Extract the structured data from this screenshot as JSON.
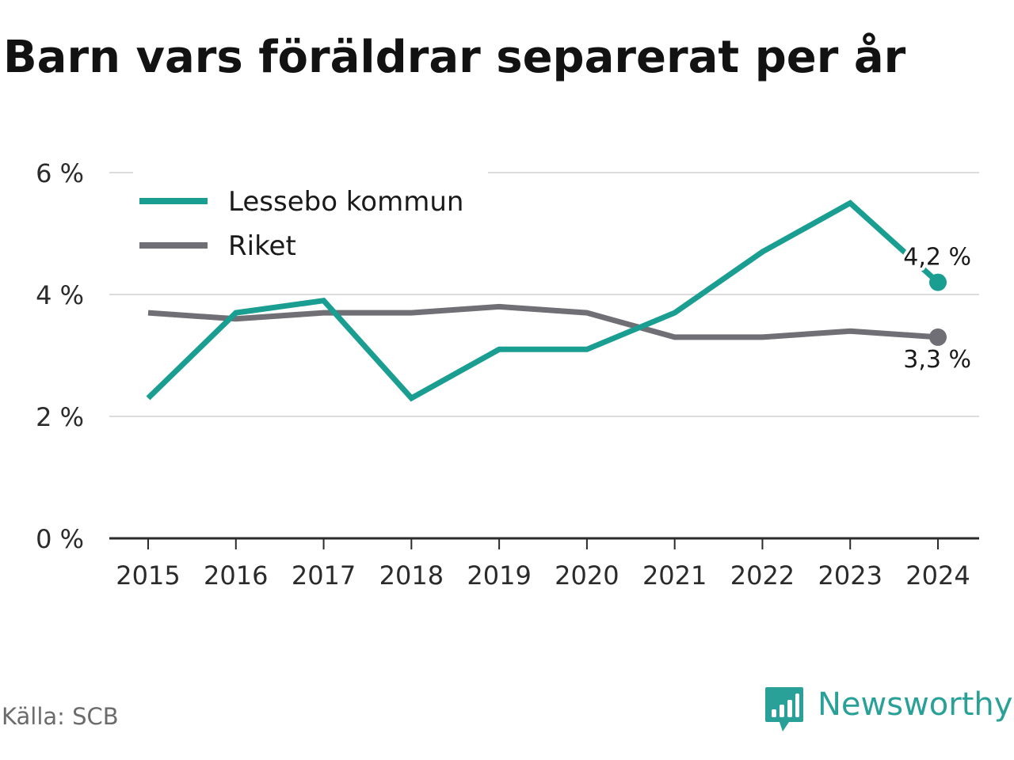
{
  "title": "Barn vars föräldrar separerat per år",
  "source": "Källa: SCB",
  "brand": {
    "name": "Newsworthy",
    "icon": "newsworthy-logo-icon",
    "color": "#2aa198"
  },
  "chart_data": {
    "type": "line",
    "title": "Barn vars föräldrar separerat per år",
    "xlabel": "",
    "ylabel": "",
    "categories": [
      "2015",
      "2016",
      "2017",
      "2018",
      "2019",
      "2020",
      "2021",
      "2022",
      "2023",
      "2024"
    ],
    "ylim": [
      0,
      6
    ],
    "yticks": [
      0,
      2,
      4,
      6
    ],
    "ytick_labels": [
      "0 %",
      "2 %",
      "4 %",
      "6 %"
    ],
    "grid": true,
    "legend_position": "top-left",
    "series": [
      {
        "name": "Lessebo kommun",
        "color": "#1a9e91",
        "values": [
          2.3,
          3.7,
          3.9,
          2.3,
          3.1,
          3.1,
          3.7,
          4.7,
          5.5,
          4.2
        ],
        "end_label": "4,2 %"
      },
      {
        "name": "Riket",
        "color": "#6f6f75",
        "values": [
          3.7,
          3.6,
          3.7,
          3.7,
          3.8,
          3.7,
          3.3,
          3.3,
          3.4,
          3.3
        ],
        "end_label": "3,3 %"
      }
    ]
  }
}
